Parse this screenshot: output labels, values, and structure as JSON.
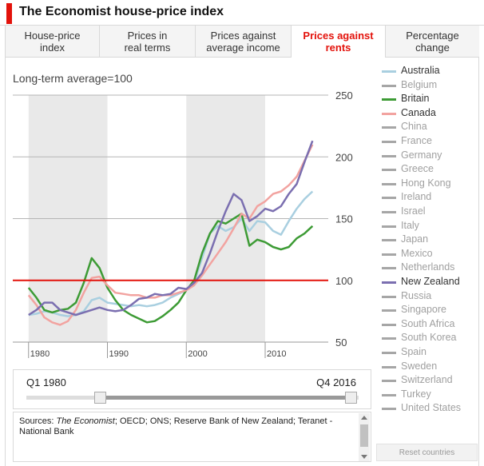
{
  "header": {
    "title": "The Economist house-price index",
    "accent_color": "#e3120b"
  },
  "tabs": [
    {
      "label": "House-price\nindex",
      "active": false
    },
    {
      "label": "Prices in\nreal terms",
      "active": false
    },
    {
      "label": "Prices against\naverage income",
      "active": false
    },
    {
      "label": "Prices against\nrents",
      "active": true
    },
    {
      "label": "Percentage\nchange",
      "active": false
    }
  ],
  "tab_active_color": "#e3120b",
  "slider": {
    "start_label": "Q1 1980",
    "end_label": "Q4 2016"
  },
  "sources": {
    "prefix": "Sources: ",
    "italic": "The Economist",
    "rest": "; OECD; ONS; Reserve Bank of New Zealand; Teranet - National Bank"
  },
  "reset_label": "Reset countries",
  "legend": [
    {
      "name": "Australia",
      "color": "#a9cfe0",
      "active": true
    },
    {
      "name": "Belgium",
      "color": "#a6a6a6",
      "active": false
    },
    {
      "name": "Britain",
      "color": "#3d9b35",
      "active": true
    },
    {
      "name": "Canada",
      "color": "#f2a3a0",
      "active": true
    },
    {
      "name": "China",
      "color": "#a6a6a6",
      "active": false
    },
    {
      "name": "France",
      "color": "#a6a6a6",
      "active": false
    },
    {
      "name": "Germany",
      "color": "#a6a6a6",
      "active": false
    },
    {
      "name": "Greece",
      "color": "#a6a6a6",
      "active": false
    },
    {
      "name": "Hong Kong",
      "color": "#a6a6a6",
      "active": false
    },
    {
      "name": "Ireland",
      "color": "#a6a6a6",
      "active": false
    },
    {
      "name": "Israel",
      "color": "#a6a6a6",
      "active": false
    },
    {
      "name": "Italy",
      "color": "#a6a6a6",
      "active": false
    },
    {
      "name": "Japan",
      "color": "#a6a6a6",
      "active": false
    },
    {
      "name": "Mexico",
      "color": "#a6a6a6",
      "active": false
    },
    {
      "name": "Netherlands",
      "color": "#a6a6a6",
      "active": false
    },
    {
      "name": "New Zealand",
      "color": "#7b6fb0",
      "active": true
    },
    {
      "name": "Russia",
      "color": "#a6a6a6",
      "active": false
    },
    {
      "name": "Singapore",
      "color": "#a6a6a6",
      "active": false
    },
    {
      "name": "South Africa",
      "color": "#a6a6a6",
      "active": false
    },
    {
      "name": "South Korea",
      "color": "#a6a6a6",
      "active": false
    },
    {
      "name": "Spain",
      "color": "#a6a6a6",
      "active": false
    },
    {
      "name": "Sweden",
      "color": "#a6a6a6",
      "active": false
    },
    {
      "name": "Switzerland",
      "color": "#a6a6a6",
      "active": false
    },
    {
      "name": "Turkey",
      "color": "#a6a6a6",
      "active": false
    },
    {
      "name": "United States",
      "color": "#a6a6a6",
      "active": false
    }
  ],
  "chart_data": {
    "type": "line",
    "note": "Long-term average=100",
    "xlim": [
      1978,
      2018
    ],
    "ylim": [
      50,
      250
    ],
    "yticks": [
      50,
      100,
      150,
      200,
      250
    ],
    "xticks": [
      1980,
      1990,
      2000,
      2010
    ],
    "xtick_labels": [
      "1980",
      "1990",
      "2000",
      "2010"
    ],
    "reference_value": 100,
    "reference_color": "#e3120b",
    "shaded_decades": [
      [
        1980,
        1990
      ],
      [
        2000,
        2010
      ]
    ],
    "grid": "horizontal",
    "series": [
      {
        "name": "Australia",
        "color": "#a9cfe0",
        "x": [
          1980,
          1981,
          1982,
          1983,
          1984,
          1985,
          1986,
          1987,
          1988,
          1989,
          1990,
          1991,
          1992,
          1993,
          1994,
          1995,
          1996,
          1997,
          1998,
          1999,
          2000,
          2001,
          2002,
          2003,
          2004,
          2005,
          2006,
          2007,
          2008,
          2009,
          2010,
          2011,
          2012,
          2013,
          2014,
          2015,
          2016
        ],
        "y": [
          72,
          73,
          75,
          74,
          72,
          71,
          72,
          75,
          84,
          86,
          82,
          81,
          80,
          79,
          80,
          79,
          80,
          82,
          86,
          89,
          92,
          98,
          118,
          138,
          144,
          140,
          143,
          150,
          140,
          148,
          147,
          140,
          137,
          148,
          158,
          166,
          172
        ]
      },
      {
        "name": "Britain",
        "color": "#3d9b35",
        "x": [
          1980,
          1981,
          1982,
          1983,
          1984,
          1985,
          1986,
          1987,
          1988,
          1989,
          1990,
          1991,
          1992,
          1993,
          1994,
          1995,
          1996,
          1997,
          1998,
          1999,
          2000,
          2001,
          2002,
          2003,
          2004,
          2005,
          2006,
          2007,
          2008,
          2009,
          2010,
          2011,
          2012,
          2013,
          2014,
          2015,
          2016
        ],
        "y": [
          94,
          86,
          76,
          74,
          76,
          77,
          82,
          98,
          118,
          110,
          94,
          84,
          76,
          72,
          69,
          66,
          67,
          71,
          76,
          82,
          92,
          100,
          122,
          138,
          148,
          146,
          150,
          154,
          128,
          133,
          131,
          127,
          125,
          127,
          134,
          138,
          144
        ]
      },
      {
        "name": "Canada",
        "color": "#f2a3a0",
        "x": [
          1980,
          1981,
          1982,
          1983,
          1984,
          1985,
          1986,
          1987,
          1988,
          1989,
          1990,
          1991,
          1992,
          1993,
          1994,
          1995,
          1996,
          1997,
          1998,
          1999,
          2000,
          2001,
          2002,
          2003,
          2004,
          2005,
          2006,
          2007,
          2008,
          2009,
          2010,
          2011,
          2012,
          2013,
          2014,
          2015,
          2016
        ],
        "y": [
          88,
          80,
          70,
          66,
          64,
          67,
          76,
          90,
          102,
          103,
          96,
          90,
          89,
          88,
          88,
          86,
          86,
          88,
          88,
          90,
          92,
          96,
          104,
          113,
          122,
          131,
          142,
          154,
          150,
          160,
          164,
          170,
          172,
          177,
          184,
          197,
          210
        ]
      },
      {
        "name": "New Zealand",
        "color": "#7b6fb0",
        "x": [
          1980,
          1981,
          1982,
          1983,
          1984,
          1985,
          1986,
          1987,
          1988,
          1989,
          1990,
          1991,
          1992,
          1993,
          1994,
          1995,
          1996,
          1997,
          1998,
          1999,
          2000,
          2001,
          2002,
          2003,
          2004,
          2005,
          2006,
          2007,
          2008,
          2009,
          2010,
          2011,
          2012,
          2013,
          2014,
          2015,
          2016
        ],
        "y": [
          72,
          76,
          82,
          82,
          76,
          74,
          72,
          74,
          76,
          78,
          76,
          75,
          76,
          80,
          85,
          86,
          89,
          88,
          89,
          94,
          93,
          98,
          106,
          122,
          140,
          156,
          170,
          165,
          148,
          152,
          158,
          156,
          160,
          170,
          178,
          196,
          213
        ]
      }
    ]
  }
}
